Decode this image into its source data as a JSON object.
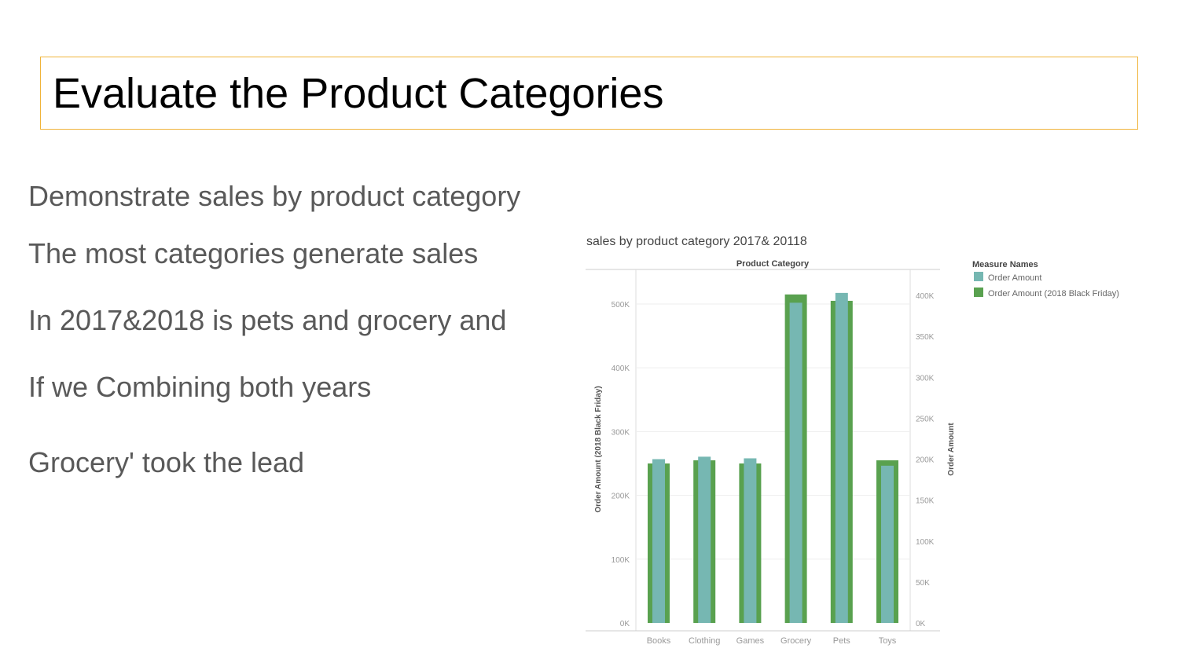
{
  "slide": {
    "title": "Evaluate the Product Categories",
    "bullets": [
      "Demonstrate sales by product category",
      "The most  categories generate sales",
      "In 2017&2018 is pets and grocery and",
      "If we Combining both years",
      "Grocery' took the lead"
    ]
  },
  "colors": {
    "title_border": "#f0b43a",
    "order_amount": "#76b7b2",
    "order_amount_black_friday": "#59a14f"
  },
  "chart_data": {
    "type": "bar",
    "title": "sales by product category 2017& 20118",
    "column_header": "Product Category",
    "categories": [
      "Books",
      "Clothing",
      "Games",
      "Grocery",
      "Pets",
      "Toys"
    ],
    "series": [
      {
        "name": "Order Amount (2018 Black Friday)",
        "axis": "left",
        "values": [
          250000,
          255000,
          250000,
          515000,
          505000,
          255000
        ]
      },
      {
        "name": "Order Amount",
        "axis": "right",
        "values": [
          200000,
          203000,
          201000,
          391000,
          403000,
          192000
        ]
      }
    ],
    "left_axis": {
      "label": "Order Amount (2018 Black Friday)",
      "ticks": [
        "500K",
        "400K",
        "300K",
        "200K",
        "100K",
        "0K"
      ],
      "ylim": [
        0,
        500000
      ]
    },
    "right_axis": {
      "label": "Order Amount",
      "ticks": [
        "400K",
        "350K",
        "300K",
        "250K",
        "200K",
        "150K",
        "100K",
        "50K",
        "0K"
      ],
      "ylim": [
        0,
        400000
      ]
    },
    "legend": {
      "title": "Measure Names",
      "items": [
        "Order Amount",
        "Order Amount (2018 Black Friday)"
      ],
      "placement": "right"
    },
    "grid": true
  }
}
